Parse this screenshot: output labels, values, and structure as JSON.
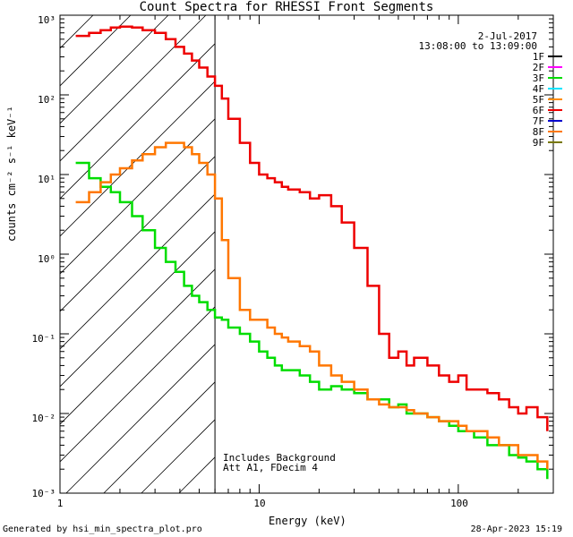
{
  "chart_data": {
    "type": "line",
    "title": "Count Spectra for RHESSI Front Segments",
    "xlabel": "Energy (keV)",
    "ylabel": "counts cm⁻² s⁻¹ keV⁻¹",
    "xscale": "log",
    "yscale": "log",
    "xlim": [
      1,
      300
    ],
    "ylim": [
      0.001,
      1000
    ],
    "x_tick_labels": [
      "1",
      "10",
      "100"
    ],
    "y_tick_labels": [
      "10³",
      "10²",
      "10¹",
      "10⁰",
      "10⁻¹",
      "10⁻²",
      "10⁻³"
    ],
    "date": "2-Jul-2017",
    "time_range": "13:08:00 to 13:09:00",
    "attenuator_region_max_kev": 6,
    "series": [
      {
        "name": "1F",
        "color": "#000000",
        "x": [],
        "y": []
      },
      {
        "name": "2F",
        "color": "#ff00ff",
        "x": [],
        "y": []
      },
      {
        "name": "3F",
        "color": "#00dd00",
        "x": [
          1.2,
          1.4,
          1.6,
          1.8,
          2.0,
          2.3,
          2.6,
          3.0,
          3.4,
          3.8,
          4.2,
          4.6,
          5.0,
          5.5,
          6.0,
          6.5,
          7,
          8,
          9,
          10,
          11,
          12,
          13,
          14,
          16,
          18,
          20,
          23,
          26,
          30,
          35,
          40,
          45,
          50,
          55,
          60,
          70,
          80,
          90,
          100,
          110,
          120,
          140,
          160,
          180,
          200,
          220,
          250,
          280
        ],
        "y": [
          14,
          9,
          7,
          6,
          4.5,
          3,
          2,
          1.2,
          0.8,
          0.6,
          0.4,
          0.3,
          0.25,
          0.2,
          0.16,
          0.15,
          0.12,
          0.1,
          0.08,
          0.06,
          0.05,
          0.04,
          0.035,
          0.035,
          0.03,
          0.025,
          0.02,
          0.022,
          0.02,
          0.018,
          0.015,
          0.015,
          0.012,
          0.013,
          0.01,
          0.01,
          0.009,
          0.008,
          0.007,
          0.006,
          0.006,
          0.005,
          0.004,
          0.004,
          0.003,
          0.0028,
          0.0025,
          0.002,
          0.0015
        ]
      },
      {
        "name": "4F",
        "color": "#00e5ff",
        "x": [],
        "y": []
      },
      {
        "name": "5F",
        "color": "#ff8c00",
        "x": [],
        "y": []
      },
      {
        "name": "6F",
        "color": "#ee0000",
        "x": [
          1.2,
          1.4,
          1.6,
          1.8,
          2.0,
          2.3,
          2.6,
          3.0,
          3.4,
          3.8,
          4.2,
          4.6,
          5.0,
          5.5,
          6.0,
          6.5,
          7,
          8,
          9,
          10,
          11,
          12,
          13,
          14,
          16,
          18,
          20,
          23,
          26,
          30,
          35,
          40,
          45,
          50,
          55,
          60,
          70,
          80,
          90,
          100,
          110,
          120,
          140,
          160,
          180,
          200,
          220,
          250,
          280
        ],
        "y": [
          550,
          600,
          650,
          700,
          720,
          700,
          650,
          600,
          500,
          400,
          330,
          270,
          220,
          170,
          130,
          90,
          50,
          25,
          14,
          10,
          9,
          8,
          7,
          6.5,
          6,
          5,
          5.5,
          4,
          2.5,
          1.2,
          0.4,
          0.1,
          0.05,
          0.06,
          0.04,
          0.05,
          0.04,
          0.03,
          0.025,
          0.03,
          0.02,
          0.02,
          0.018,
          0.015,
          0.012,
          0.01,
          0.012,
          0.009,
          0.006
        ]
      },
      {
        "name": "7F",
        "color": "#0000cc",
        "x": [],
        "y": []
      },
      {
        "name": "8F",
        "color": "#ff7700",
        "x": [
          1.2,
          1.4,
          1.6,
          1.8,
          2.0,
          2.3,
          2.6,
          3.0,
          3.4,
          3.8,
          4.2,
          4.6,
          5.0,
          5.5,
          6.0,
          6.5,
          7,
          8,
          9,
          10,
          11,
          12,
          13,
          14,
          16,
          18,
          20,
          23,
          26,
          30,
          35,
          40,
          45,
          50,
          55,
          60,
          70,
          80,
          90,
          100,
          110,
          120,
          140,
          160,
          180,
          200,
          220,
          250,
          280
        ],
        "y": [
          4.5,
          6,
          8,
          10,
          12,
          15,
          18,
          22,
          25,
          25,
          22,
          18,
          14,
          10,
          5,
          1.5,
          0.5,
          0.2,
          0.15,
          0.15,
          0.12,
          0.1,
          0.09,
          0.08,
          0.07,
          0.06,
          0.04,
          0.03,
          0.025,
          0.02,
          0.015,
          0.013,
          0.012,
          0.012,
          0.011,
          0.01,
          0.009,
          0.008,
          0.008,
          0.007,
          0.006,
          0.006,
          0.005,
          0.004,
          0.004,
          0.003,
          0.003,
          0.0025,
          0.002
        ]
      },
      {
        "name": "9F",
        "color": "#777700",
        "x": [],
        "y": []
      }
    ]
  },
  "labels": {
    "includes_background": "Includes Background",
    "attenuator": "Att A1, FDecim 4",
    "footer_left": "Generated by hsi_min_spectra_plot.pro",
    "footer_right": "28-Apr-2023 15:19"
  }
}
